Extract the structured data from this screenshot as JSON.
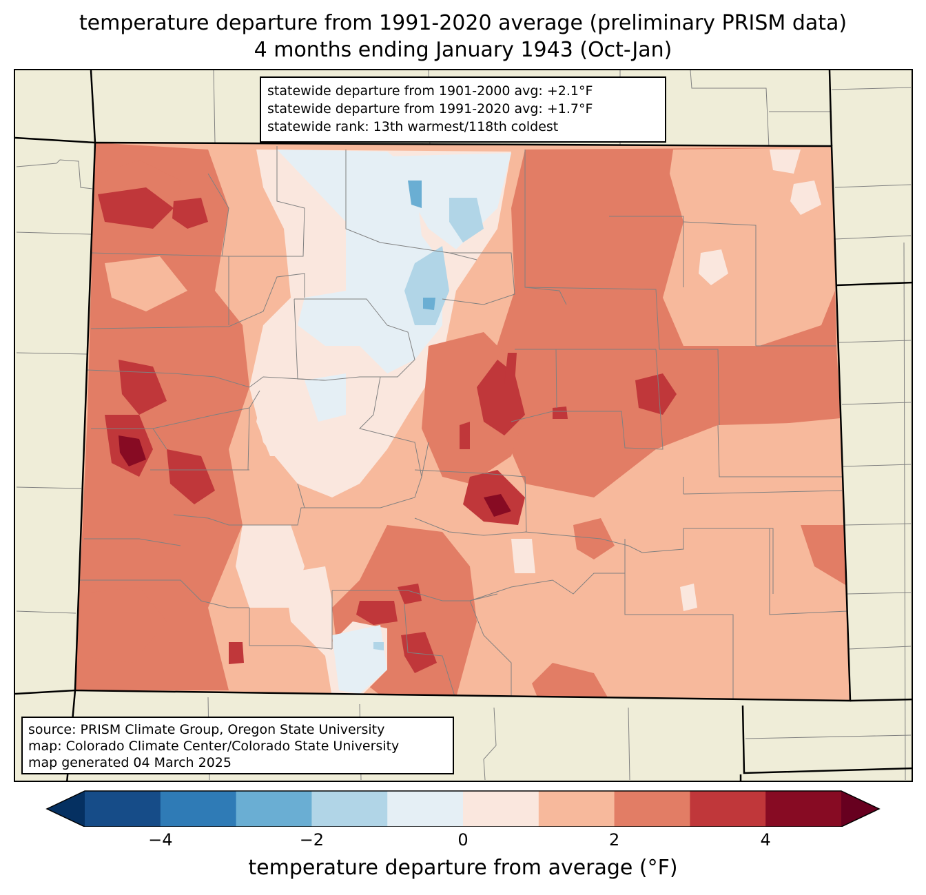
{
  "title": {
    "line1": "temperature departure from 1991-2020 average (preliminary PRISM data)",
    "line2": "4 months ending January 1943 (Oct-Jan)"
  },
  "stats": {
    "line1": "statewide departure from 1901-2000 avg: +2.1°F",
    "line2": "statewide departure from 1991-2020 avg: +1.7°F",
    "line3": "statewide rank: 13th warmest/118th coldest"
  },
  "source": {
    "line1": "source: PRISM Climate Group, Oregon State University",
    "line2": "map: Colorado Climate Center/Colorado State University",
    "line3": "map generated 04 March 2025"
  },
  "colorbar": {
    "label": "temperature departure from average (°F)",
    "min": -5,
    "max": 5,
    "step": 1,
    "ticks": [
      "−4",
      "−2",
      "0",
      "2",
      "4"
    ],
    "tick_values": [
      -4,
      -2,
      0,
      2,
      4
    ],
    "colors": [
      "#164c88",
      "#2f7bb6",
      "#6aaed3",
      "#b1d5e7",
      "#e5eff5",
      "#fae7de",
      "#f7b99c",
      "#e27d65",
      "#c0373a",
      "#870b23"
    ],
    "under_color": "#053061",
    "over_color": "#67001f"
  },
  "map_colors": {
    "background": "#efedd8",
    "boundary": "#000000",
    "county": "#808080"
  }
}
